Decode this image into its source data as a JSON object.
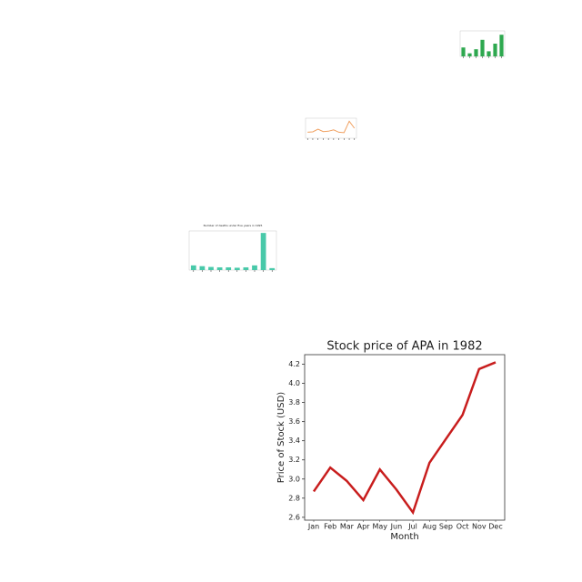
{
  "chart_data": [
    {
      "type": "bar",
      "color": "#2ea84f",
      "categories": [
        null,
        null,
        null,
        null,
        null,
        null,
        null
      ],
      "values": [
        35,
        12,
        28,
        65,
        20,
        50,
        85
      ],
      "ylim": [
        0,
        100
      ]
    },
    {
      "type": "line",
      "color": "#f0a060",
      "categories": [
        null,
        null,
        null,
        null,
        null,
        null,
        null,
        null,
        null,
        null
      ],
      "values": [
        30,
        32,
        45,
        33,
        35,
        42,
        30,
        28,
        85,
        50
      ],
      "ylim": [
        0,
        100
      ]
    },
    {
      "type": "bar",
      "color": "#48c9a9",
      "title": "Number of deaths under five years in 1995",
      "categories": [
        null,
        null,
        null,
        null,
        null,
        null,
        null,
        null,
        null,
        null
      ],
      "values": [
        12,
        10,
        8,
        7,
        7,
        6,
        7,
        12,
        95,
        5
      ],
      "ylim": [
        0,
        100
      ]
    },
    {
      "type": "line",
      "color": "#c81d1d",
      "title": "Stock price of APA in 1982",
      "x_label": "Month",
      "y_label": "Price of Stock (USD)",
      "categories": [
        "Jan",
        "Feb",
        "Mar",
        "Apr",
        "May",
        "Jun",
        "Jul",
        "Aug",
        "Sep",
        "Oct",
        "Nov",
        "Dec"
      ],
      "values": [
        2.87,
        3.12,
        2.98,
        2.78,
        3.1,
        2.89,
        2.65,
        3.17,
        3.42,
        3.67,
        4.15,
        4.22
      ],
      "ylim": [
        2.57,
        4.3
      ],
      "yticks": [
        2.6,
        2.8,
        {
          "value": 3,
          "label": "3.0"
        },
        3.2,
        3.4,
        3.6,
        3.8,
        {
          "value": 4,
          "label": "4.0"
        },
        4.2
      ]
    }
  ]
}
